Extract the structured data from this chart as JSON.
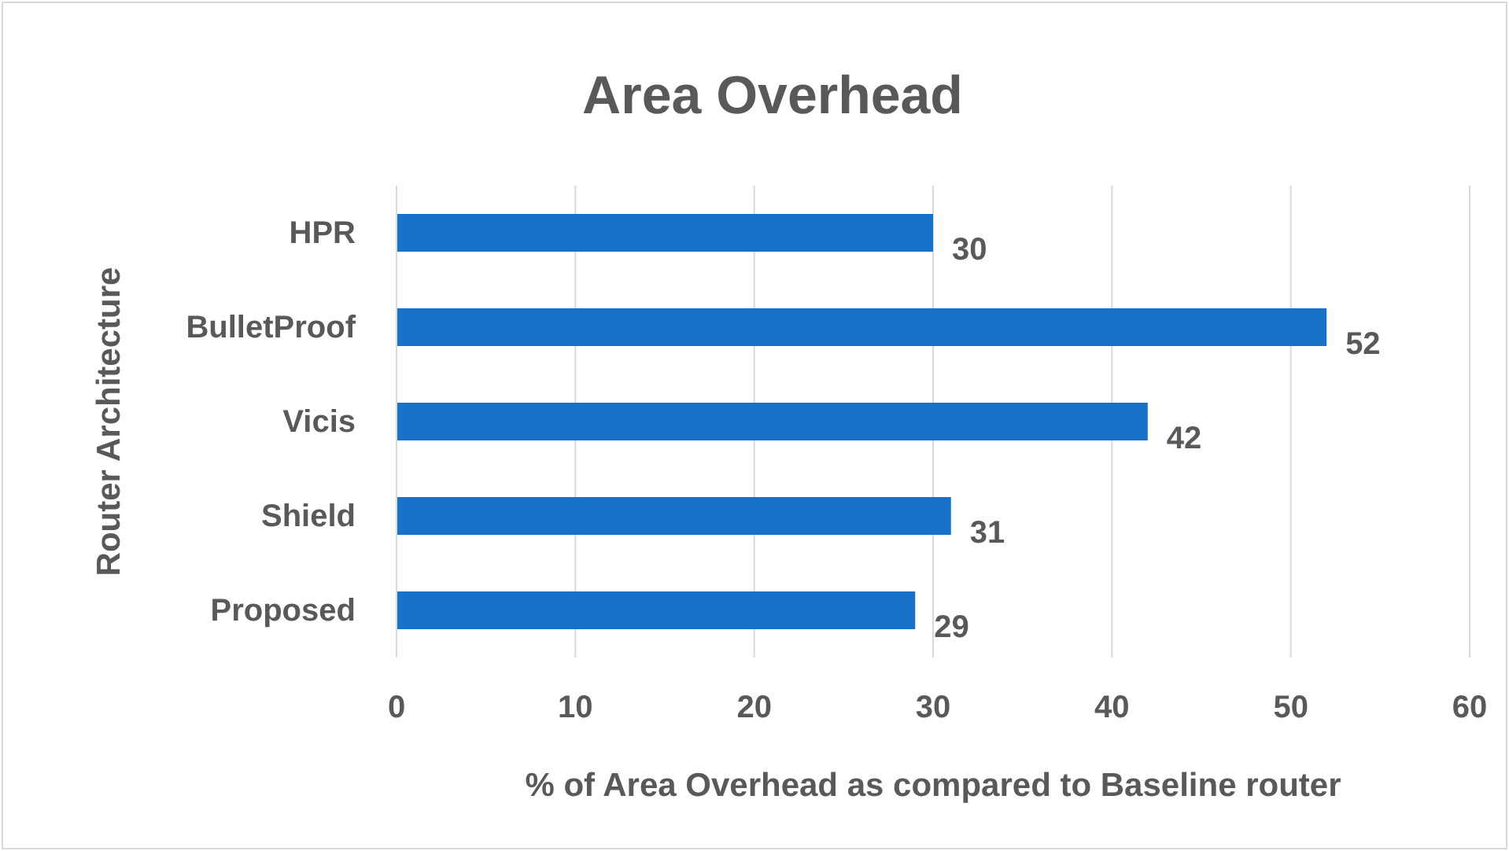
{
  "chart_data": {
    "type": "bar",
    "title": "Area Overhead",
    "xlabel": "% of Area Overhead as compared to Baseline router",
    "ylabel": "Router Architecture",
    "orientation": "horizontal",
    "categories": [
      "HPR",
      "BulletProof",
      "Vicis",
      "Shield",
      "Proposed"
    ],
    "values": [
      30,
      52,
      42,
      31,
      29
    ],
    "color": "#1872c8",
    "xlim": [
      0,
      60
    ],
    "xticks": [
      0,
      10,
      20,
      30,
      40,
      50,
      60
    ],
    "grid": "x",
    "data_labels": true
  }
}
